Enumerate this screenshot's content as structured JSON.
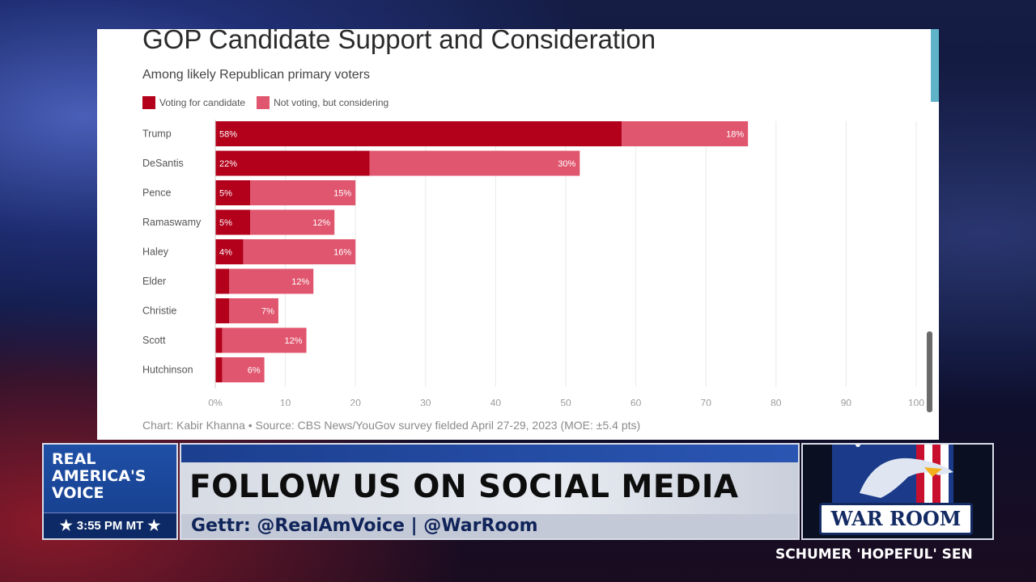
{
  "chart_data": {
    "type": "bar",
    "orientation": "horizontal",
    "stacked": true,
    "title": "GOP Candidate Support and Consideration",
    "subtitle": "Among likely Republican primary voters",
    "categories": [
      "Trump",
      "DeSantis",
      "Pence",
      "Ramaswamy",
      "Haley",
      "Elder",
      "Christie",
      "Scott",
      "Hutchinson"
    ],
    "series": [
      {
        "name": "Voting for candidate",
        "color": "#b3001b",
        "values": [
          58,
          22,
          5,
          5,
          4,
          2,
          2,
          1,
          1
        ],
        "labels": [
          "58%",
          "22%",
          "5%",
          "5%",
          "4%",
          "",
          "",
          "",
          ""
        ]
      },
      {
        "name": "Not voting, but considering",
        "color": "#e0566f",
        "values": [
          18,
          30,
          15,
          12,
          16,
          12,
          7,
          12,
          6
        ],
        "labels": [
          "18%",
          "30%",
          "15%",
          "12%",
          "16%",
          "12%",
          "7%",
          "12%",
          "6%"
        ]
      }
    ],
    "xlim": [
      0,
      100
    ],
    "xticks": [
      "0%",
      "10",
      "20",
      "30",
      "40",
      "50",
      "60",
      "70",
      "80",
      "90",
      "100"
    ],
    "grid": true,
    "legend": "top-left",
    "source": "Chart: Kabir Khanna • Source: CBS News/YouGov survey fielded April 27-29, 2023 (MOE: ±5.4 pts)"
  },
  "broadcast": {
    "network_logo": "REAL\nAMERICA'S\nVOICE",
    "time": "3:55 PM MT",
    "headline": "FOLLOW US ON SOCIAL MEDIA",
    "subline": "Gettr: @RealAmVoice | @WarRoom",
    "show_name": "WAR ROOM",
    "ticker": "SCHUMER 'HOPEFUL' SEN"
  },
  "colors": {
    "dark_red": "#b3001b",
    "pink": "#e0566f",
    "network_blue": "#1f4fa6"
  }
}
